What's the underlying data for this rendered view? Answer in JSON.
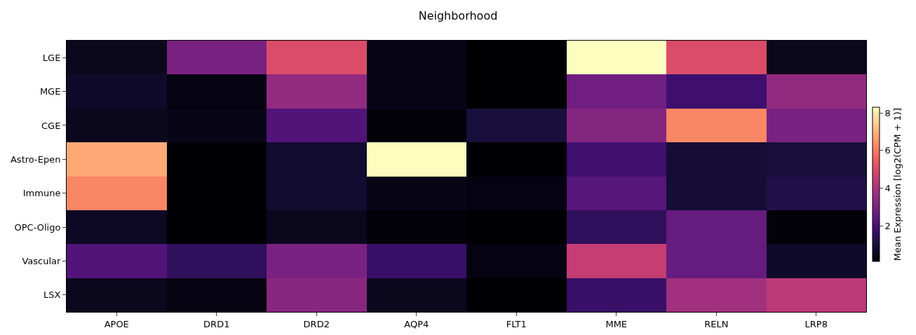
{
  "chart_data": {
    "type": "heatmap",
    "title": "Neighborhood",
    "clabel": "Mean Expression [log2(CPM + 1)]",
    "categories": [
      "APOE",
      "DRD1",
      "DRD2",
      "AQP4",
      "FLT1",
      "MME",
      "RELN",
      "LRP8"
    ],
    "y_categories": [
      "LGE",
      "MGE",
      "CGE",
      "Astro-Epen",
      "Immune",
      "OPC-Oligo",
      "Vascular",
      "LSX"
    ],
    "cells": [
      [
        0.5,
        3.0,
        5.0,
        0.4,
        0.1,
        8.3,
        5.0,
        0.5
      ],
      [
        0.7,
        0.3,
        3.5,
        0.4,
        0.1,
        2.8,
        1.8,
        3.5
      ],
      [
        0.5,
        0.4,
        2.2,
        0.2,
        1.0,
        3.2,
        6.2,
        3.0
      ],
      [
        6.8,
        0.1,
        0.8,
        8.3,
        0.1,
        1.8,
        0.9,
        1.0
      ],
      [
        6.2,
        0.1,
        0.8,
        0.4,
        0.3,
        2.3,
        0.9,
        1.2
      ],
      [
        0.6,
        0.1,
        0.5,
        0.2,
        0.1,
        1.5,
        2.6,
        0.2
      ],
      [
        2.2,
        1.5,
        3.0,
        1.7,
        0.3,
        4.5,
        2.6,
        0.7
      ],
      [
        0.5,
        0.3,
        3.3,
        0.5,
        0.1,
        1.7,
        3.8,
        4.3
      ]
    ],
    "clim": [
      0.1,
      8.3
    ],
    "cticks": [
      2,
      4,
      6,
      8
    ]
  }
}
